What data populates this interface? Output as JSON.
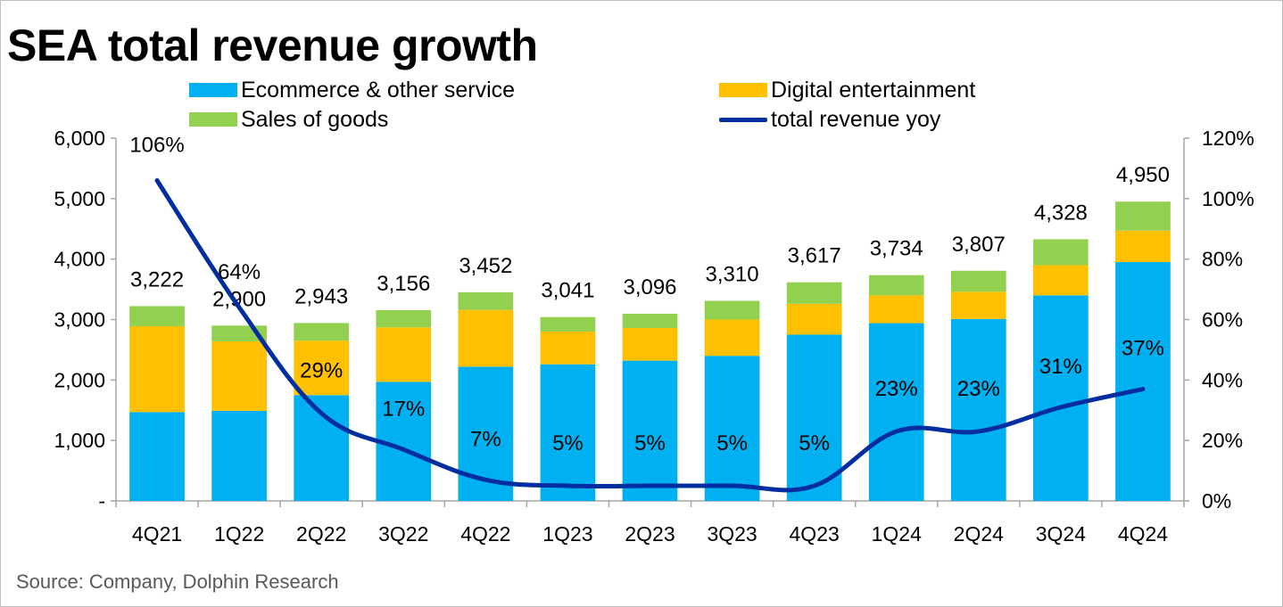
{
  "title": "SEA total revenue growth",
  "source": "Source: Company, Dolphin Research",
  "legend": {
    "ecommerce": "Ecommerce & other service",
    "digital": "Digital entertainment",
    "goods": "Sales of goods",
    "yoy": "total revenue yoy"
  },
  "colors": {
    "ecommerce": "#00b0f0",
    "digital": "#ffc000",
    "goods": "#92d050",
    "yoy": "#002da0"
  },
  "chart_data": {
    "type": "bar",
    "stacked": true,
    "categories": [
      "4Q21",
      "1Q22",
      "2Q22",
      "3Q22",
      "4Q22",
      "1Q23",
      "2Q23",
      "3Q23",
      "4Q23",
      "1Q24",
      "2Q24",
      "3Q24",
      "4Q24"
    ],
    "series": [
      {
        "name": "Ecommerce & other service",
        "values": [
          1470,
          1490,
          1750,
          1970,
          2220,
          2260,
          2320,
          2400,
          2750,
          2940,
          3010,
          3400,
          3950
        ]
      },
      {
        "name": "Digital entertainment",
        "values": [
          1420,
          1150,
          900,
          900,
          940,
          540,
          540,
          600,
          510,
          460,
          450,
          500,
          520
        ]
      },
      {
        "name": "Sales of goods",
        "values": [
          332,
          260,
          293,
          286,
          292,
          241,
          236,
          310,
          357,
          334,
          347,
          428,
          480
        ]
      }
    ],
    "totals": [
      3222,
      2900,
      2943,
      3156,
      3452,
      3041,
      3096,
      3310,
      3617,
      3734,
      3807,
      4328,
      4950
    ],
    "total_labels": [
      "3,222",
      "2,900",
      "2,943",
      "3,156",
      "3,452",
      "3,041",
      "3,096",
      "3,310",
      "3,617",
      "3,734",
      "3,807",
      "4,328",
      "4,950"
    ],
    "line_series": {
      "name": "total revenue yoy",
      "axis": "right",
      "values": [
        106,
        64,
        29,
        17,
        7,
        5,
        5,
        5,
        5,
        23,
        23,
        31,
        37
      ],
      "labels": [
        "106%",
        "64%",
        "29%",
        "17%",
        "7%",
        "5%",
        "5%",
        "5%",
        "5%",
        "23%",
        "23%",
        "31%",
        "37%"
      ]
    },
    "y_left": {
      "range": [
        0,
        6000
      ],
      "ticks": [
        "-",
        "1,000",
        "2,000",
        "3,000",
        "4,000",
        "5,000",
        "6,000"
      ]
    },
    "y_right": {
      "range": [
        0,
        120
      ],
      "ticks": [
        "0%",
        "20%",
        "40%",
        "60%",
        "80%",
        "100%",
        "120%"
      ]
    },
    "grid": false,
    "legend_position": "top"
  }
}
